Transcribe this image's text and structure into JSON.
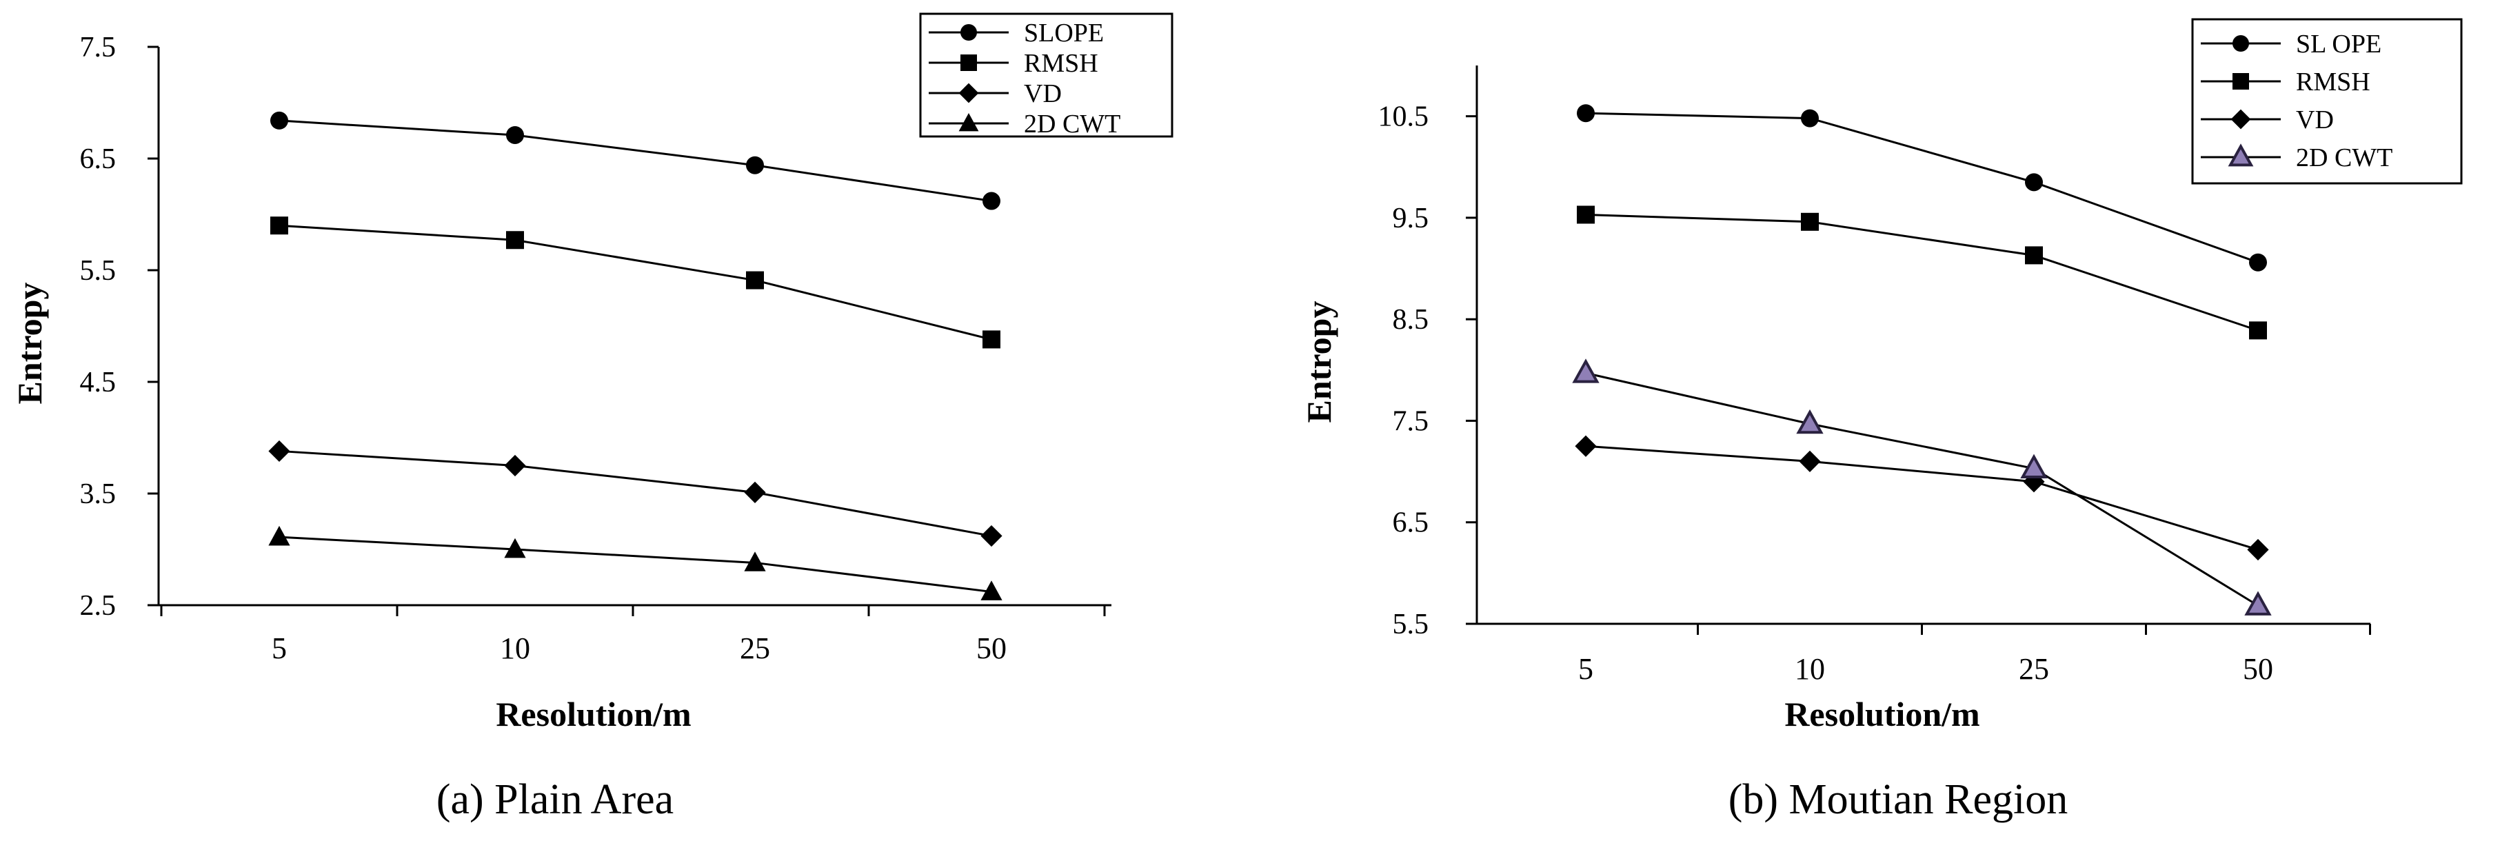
{
  "chart_data": [
    {
      "type": "line",
      "caption": "(a) Plain Area",
      "categories": [
        "5",
        "10",
        "25",
        "50"
      ],
      "xlabel": "Resolution/m",
      "ylabel": "Entropy",
      "ylim": [
        2.5,
        7.5
      ],
      "yticks": [
        "7.5",
        "6.5",
        "5.5",
        "4.5",
        "3.5",
        "2.5"
      ],
      "grid": false,
      "legend_position": "top-right",
      "series": [
        {
          "name": "SLOPE",
          "marker": "circle",
          "values": [
            6.84,
            6.71,
            6.44,
            6.12
          ]
        },
        {
          "name": "RMSH",
          "marker": "square",
          "values": [
            5.9,
            5.77,
            5.41,
            4.88
          ]
        },
        {
          "name": "VD",
          "marker": "diamond",
          "values": [
            3.88,
            3.75,
            3.51,
            3.12
          ]
        },
        {
          "name": "2D CWT",
          "marker": "triangle",
          "values": [
            3.11,
            3.0,
            2.88,
            2.62
          ]
        }
      ]
    },
    {
      "type": "line",
      "caption": "(b) Moutian Region",
      "categories": [
        "5",
        "10",
        "25",
        "50"
      ],
      "xlabel": "Resolution/m",
      "ylabel": "Entropy",
      "ylim": [
        5.5,
        11.0
      ],
      "yticks": [
        "10.5",
        "9.5",
        "8.5",
        "7.5",
        "6.5",
        "5.5"
      ],
      "grid": false,
      "legend_position": "top-right",
      "series": [
        {
          "name": "SL OPE",
          "marker": "circle",
          "values": [
            10.53,
            10.48,
            9.85,
            9.06
          ]
        },
        {
          "name": "RMSH",
          "marker": "square",
          "values": [
            9.53,
            9.46,
            9.13,
            8.39
          ]
        },
        {
          "name": "VD",
          "marker": "diamond",
          "values": [
            7.25,
            7.1,
            6.9,
            6.23
          ]
        },
        {
          "name": "2D CWT",
          "marker": "triangle-purple",
          "values": [
            7.97,
            7.47,
            7.03,
            5.68
          ]
        }
      ]
    }
  ]
}
